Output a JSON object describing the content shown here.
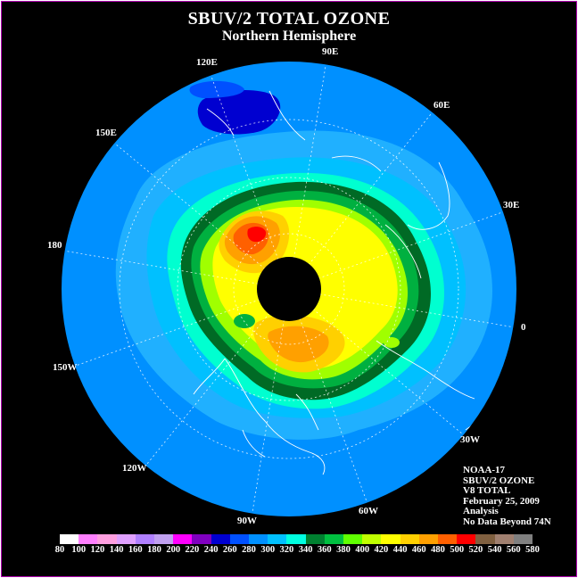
{
  "header": {
    "title": "SBUV/2 TOTAL OZONE",
    "subtitle": "Northern Hemisphere"
  },
  "longitude_labels": [
    "90E",
    "60E",
    "30E",
    "0",
    "30W",
    "60W",
    "90W",
    "120W",
    "150W",
    "180",
    "150E",
    "120E"
  ],
  "info": {
    "satellite": "NOAA-17",
    "product": "SBUV/2 OZONE",
    "version": "V8 TOTAL",
    "date": "February 25, 2009",
    "type": "Analysis",
    "note": "No Data Beyond 74N"
  },
  "colorbar": {
    "ticks": [
      "80",
      "100",
      "120",
      "140",
      "160",
      "180",
      "200",
      "220",
      "240",
      "260",
      "280",
      "300",
      "320",
      "340",
      "360",
      "380",
      "400",
      "420",
      "440",
      "460",
      "480",
      "500",
      "520",
      "540",
      "560",
      "580"
    ],
    "colors": [
      "#ffffff",
      "#ff80ff",
      "#ff9fe0",
      "#e0a0ff",
      "#b080ff",
      "#c0a0f0",
      "#ff00ff",
      "#8000c0",
      "#0000d0",
      "#0050ff",
      "#0090ff",
      "#00c0ff",
      "#00ffe0",
      "#008030",
      "#00c040",
      "#60ff00",
      "#c0ff00",
      "#ffff00",
      "#ffd000",
      "#ffa000",
      "#ff6000",
      "#ff0000",
      "#806040",
      "#a08070",
      "#808080"
    ]
  }
}
